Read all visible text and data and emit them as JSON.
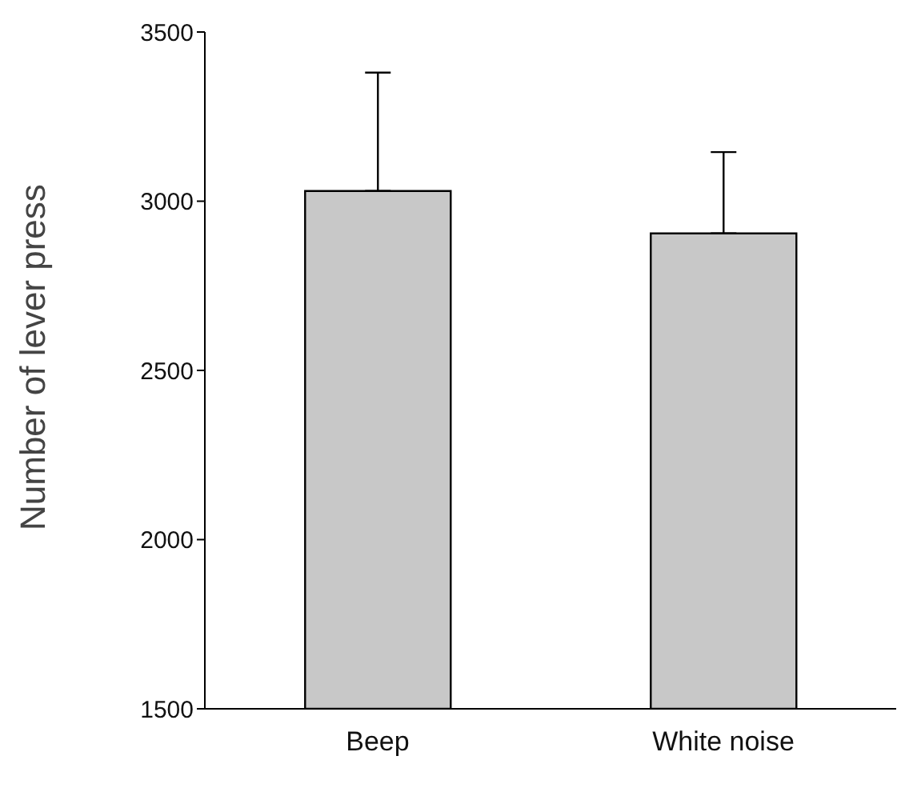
{
  "chart_data": {
    "type": "bar",
    "ylabel": "Number of lever press",
    "categories": [
      "Beep",
      "White noise"
    ],
    "values": [
      3030,
      2905
    ],
    "errors": [
      [
        3030,
        3380
      ],
      [
        2905,
        3145
      ]
    ],
    "color": "#c8c8c8",
    "ylim": [
      1500,
      3500
    ],
    "yticks": [
      1500,
      2000,
      2500,
      3000,
      3500
    ],
    "grid": false,
    "legend": false
  }
}
